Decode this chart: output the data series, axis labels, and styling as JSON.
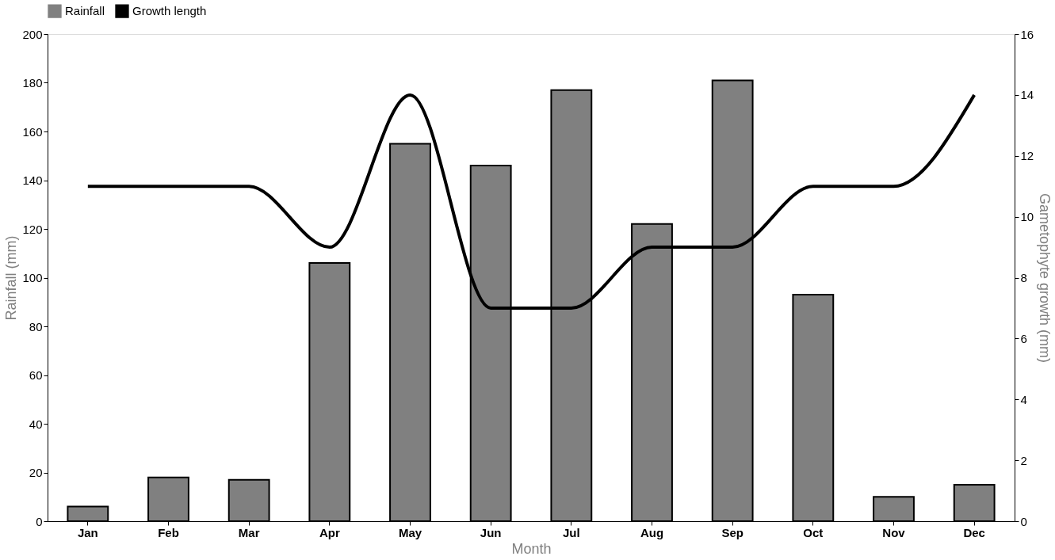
{
  "chart_data": {
    "type": "bar",
    "xlabel": "Month",
    "ylabel": "Rainfall (mm)",
    "y2label": "Gametophyte growth (mm)",
    "categories": [
      "Jan",
      "Feb",
      "Mar",
      "Apr",
      "May",
      "Jun",
      "Jul",
      "Aug",
      "Sep",
      "Oct",
      "Nov",
      "Dec"
    ],
    "series": [
      {
        "name": "Rainfall",
        "color": "#808080",
        "values": [
          6,
          18,
          17,
          106,
          155,
          146,
          177,
          122,
          181,
          93,
          10,
          15
        ]
      },
      {
        "name": "Growth length",
        "type": "line",
        "axis": "y2",
        "color": "#000000",
        "values": [
          11,
          11,
          11,
          9,
          14,
          7,
          7,
          9,
          9,
          11,
          11,
          14
        ]
      }
    ],
    "ylim": [
      0,
      200
    ],
    "yticks": [
      0,
      20,
      40,
      60,
      80,
      100,
      120,
      140,
      160,
      180,
      200
    ],
    "y2lim": [
      0,
      16
    ],
    "y2ticks": [
      0,
      2,
      4,
      6,
      8,
      10,
      12,
      14,
      16
    ],
    "legend": "top",
    "grid": false,
    "line_style": "solid",
    "marker": "none"
  }
}
